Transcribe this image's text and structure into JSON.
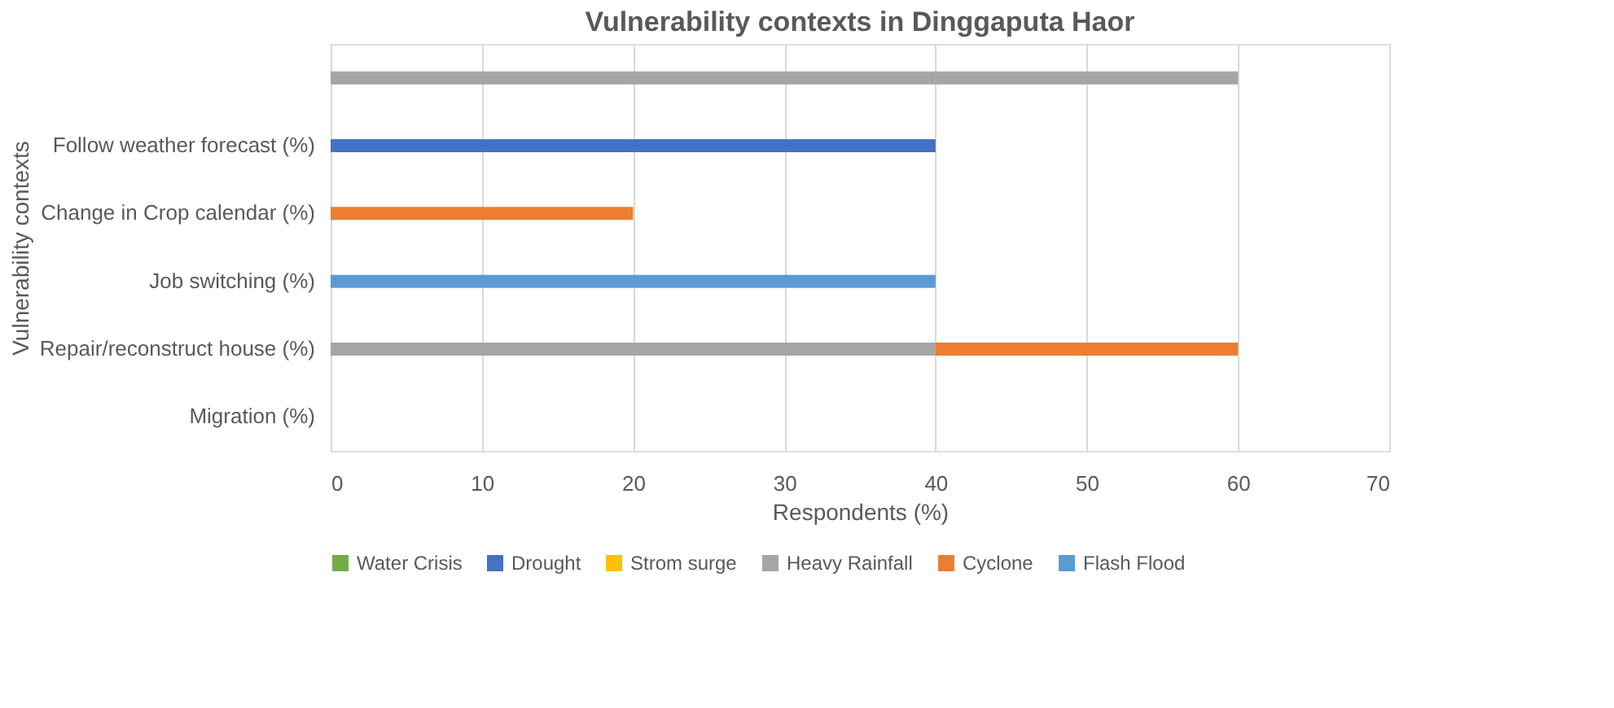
{
  "chart_data": {
    "type": "bar",
    "orientation": "horizontal",
    "stacked": true,
    "title": "Vulnerability contexts in Dinggaputa Haor",
    "xlabel": "Respondents (%)",
    "ylabel": "Vulnerability contexts",
    "categories": [
      null,
      "Follow weather forecast (%)",
      "Change in Crop calendar (%)",
      "Job switching (%)",
      "Repair/reconstruct house (%)",
      "Migration (%)"
    ],
    "series": [
      {
        "name": "Water Crisis",
        "color": "#70ad47",
        "values": [
          null,
          null,
          null,
          null,
          null,
          null
        ]
      },
      {
        "name": "Drought",
        "color": "#4472c4",
        "values": [
          null,
          40,
          null,
          null,
          null,
          null
        ]
      },
      {
        "name": "Strom surge",
        "color": "#ffc000",
        "values": [
          null,
          null,
          null,
          null,
          null,
          null
        ]
      },
      {
        "name": "Heavy Rainfall",
        "color": "#a5a5a5",
        "values": [
          40,
          null,
          null,
          null,
          40,
          null
        ]
      },
      {
        "name": "Cyclone",
        "color": "#ed7d31",
        "values": [
          null,
          null,
          20,
          null,
          20,
          null
        ]
      },
      {
        "name": "Flash Flood",
        "color": "#5b9bd5",
        "values": [
          null,
          null,
          null,
          40,
          null,
          null
        ]
      },
      {
        "color": "#a5a5a5",
        "values": [
          20,
          null,
          null,
          null,
          null,
          null
        ]
      }
    ],
    "xlim": [
      0,
      70
    ],
    "xticks": [
      0,
      10,
      20,
      30,
      40,
      50,
      60,
      70
    ],
    "grid": "x",
    "legend": "bottom"
  }
}
